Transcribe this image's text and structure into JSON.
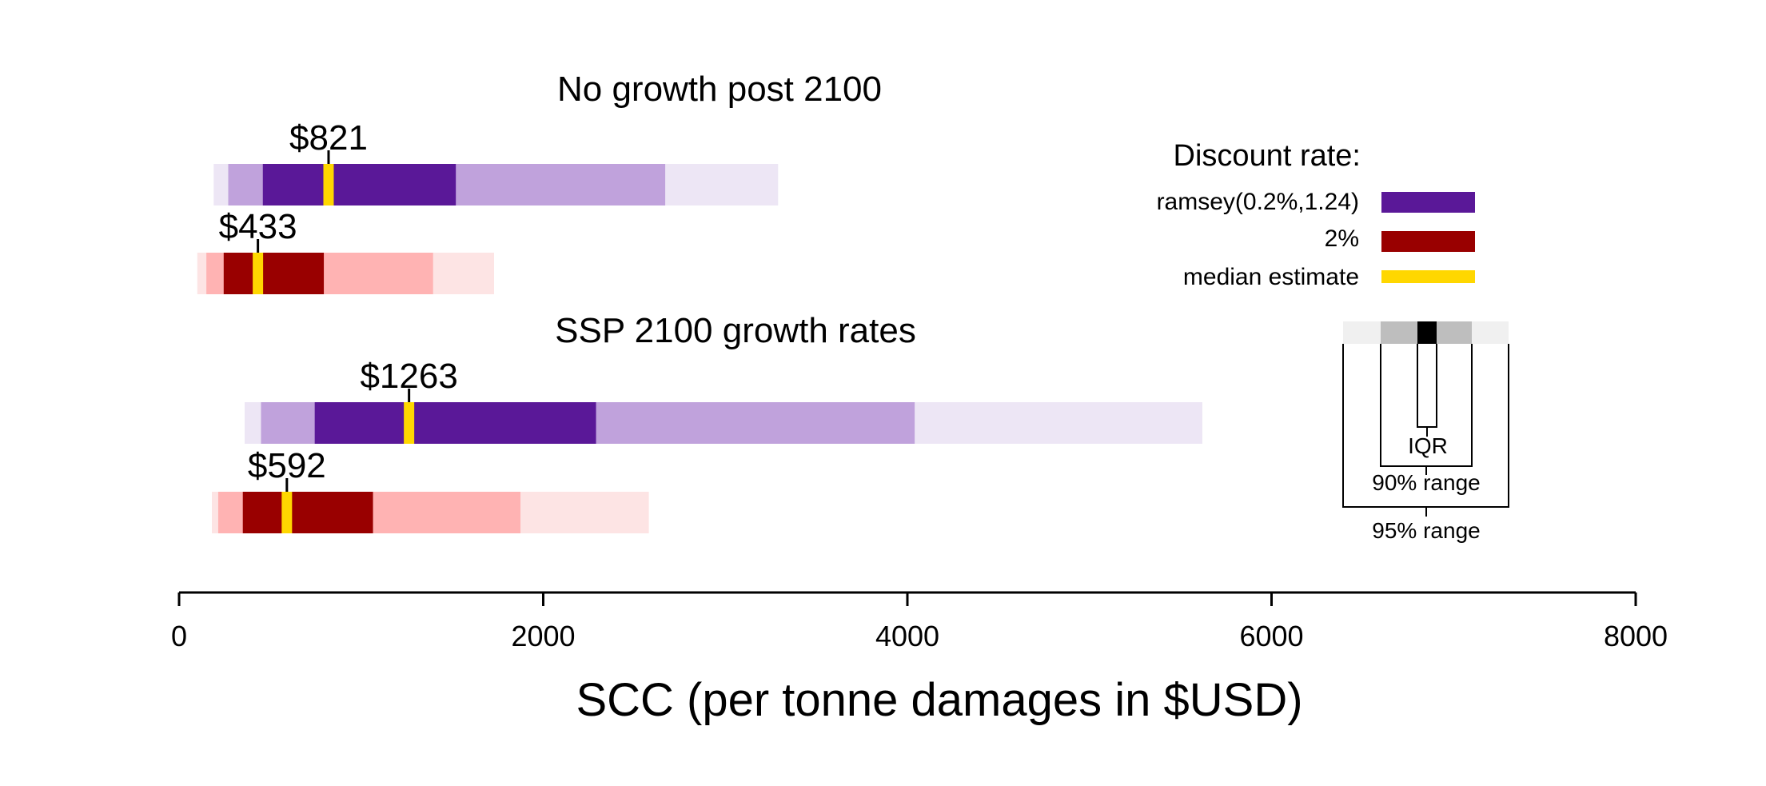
{
  "chart_data": {
    "type": "range-bar",
    "xlabel": "SCC (per tonne damages in $USD)",
    "xlim": [
      0,
      8000
    ],
    "xticks": [
      0,
      2000,
      4000,
      6000,
      8000
    ],
    "groups": [
      {
        "title": "No growth post 2100",
        "series": [
          {
            "name": "ramsey(0.2%,1.24)",
            "median": 821,
            "median_label": "$821",
            "iqr": [
              460,
              1520
            ],
            "range90": [
              270,
              2670
            ],
            "range95": [
              190,
              3290
            ]
          },
          {
            "name": "2%",
            "median": 433,
            "median_label": "$433",
            "iqr": [
              245,
              795
            ],
            "range90": [
              150,
              1395
            ],
            "range95": [
              100,
              1730
            ]
          }
        ]
      },
      {
        "title": "SSP 2100 growth rates",
        "series": [
          {
            "name": "ramsey(0.2%,1.24)",
            "median": 1263,
            "median_label": "$1263",
            "iqr": [
              745,
              2290
            ],
            "range90": [
              450,
              4040
            ],
            "range95": [
              360,
              5620
            ]
          },
          {
            "name": "2%",
            "median": 592,
            "median_label": "$592",
            "iqr": [
              350,
              1065
            ],
            "range90": [
              215,
              1875
            ],
            "range95": [
              180,
              2580
            ]
          }
        ]
      }
    ],
    "legend": {
      "title": "Discount rate:",
      "placement": "right",
      "entries": [
        {
          "label": "ramsey(0.2%,1.24)",
          "color": "#5a1898"
        },
        {
          "label": "2%",
          "color": "#990000"
        },
        {
          "label": "median estimate",
          "color": "#ffd700"
        }
      ],
      "key": {
        "iqr_label": "IQR",
        "range90_label": "90% range",
        "range95_label": "95% range"
      }
    },
    "colors": {
      "ramsey": {
        "iqr": "#5a1898",
        "range90": "#c0a2dc",
        "range95": "#ede6f5"
      },
      "two_pct": {
        "iqr": "#990000",
        "range90": "#ffb3b3",
        "range95": "#fde4e4"
      },
      "median": "#ffd700",
      "key": {
        "iqr": "#000000",
        "range90": "#bebebe",
        "range95": "#f0f0f0"
      }
    }
  }
}
